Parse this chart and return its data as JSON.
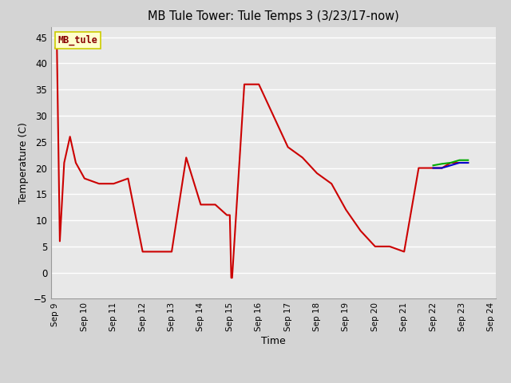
{
  "title": "MB Tule Tower: Tule Temps 3 (3/23/17-now)",
  "xlabel": "Time",
  "ylabel": "Temperature (C)",
  "ylim": [
    -5,
    47
  ],
  "yticks": [
    -5,
    0,
    5,
    10,
    15,
    20,
    25,
    30,
    35,
    40,
    45
  ],
  "xlim": [
    8.85,
    24.15
  ],
  "legend_label": "MB_tule",
  "legend_bg": "#ffffcc",
  "legend_border": "#cccc00",
  "series": {
    "Tul3_Ts-8": {
      "color": "#cc0000",
      "x": [
        9.0,
        9.05,
        9.15,
        9.3,
        9.5,
        9.7,
        10.0,
        10.5,
        11.0,
        11.5,
        12.0,
        12.5,
        13.0,
        13.5,
        14.0,
        14.5,
        14.9,
        15.0,
        15.05,
        15.08,
        15.5,
        16.0,
        16.5,
        17.0,
        17.5,
        18.0,
        18.5,
        19.0,
        19.5,
        20.0,
        20.5,
        21.0,
        21.5,
        22.0,
        22.3,
        22.6,
        22.9,
        23.2
      ],
      "y": [
        43,
        43,
        6,
        21,
        26,
        21,
        18,
        17,
        17,
        18,
        4,
        4,
        4,
        22,
        13,
        13,
        11,
        11,
        -1,
        -1,
        36,
        36,
        30,
        24,
        22,
        19,
        17,
        12,
        8,
        5,
        5,
        4,
        20,
        20,
        20,
        21,
        21,
        21
      ]
    },
    "Tul3_Ts-2": {
      "color": "#0000cc",
      "x": [
        22.0,
        22.3,
        22.6,
        22.9,
        23.2
      ],
      "y": [
        20,
        20,
        20.5,
        21,
        21
      ]
    },
    "Tul3_Tw+4": {
      "color": "#00aa00",
      "x": [
        22.0,
        22.3,
        22.6,
        22.9,
        23.2
      ],
      "y": [
        20.5,
        20.8,
        21,
        21.5,
        21.5
      ]
    }
  },
  "xtick_positions": [
    9,
    10,
    11,
    12,
    13,
    14,
    15,
    16,
    17,
    18,
    19,
    20,
    21,
    22,
    23,
    24
  ],
  "xtick_labels": [
    "Sep 9",
    "Sep 10",
    "Sep 11",
    "Sep 12",
    "Sep 13",
    "Sep 14",
    "Sep 15",
    "Sep 16",
    "Sep 17",
    "Sep 18",
    "Sep 19",
    "Sep 20",
    "Sep 21",
    "Sep 22",
    "Sep 23",
    "Sep 24"
  ]
}
